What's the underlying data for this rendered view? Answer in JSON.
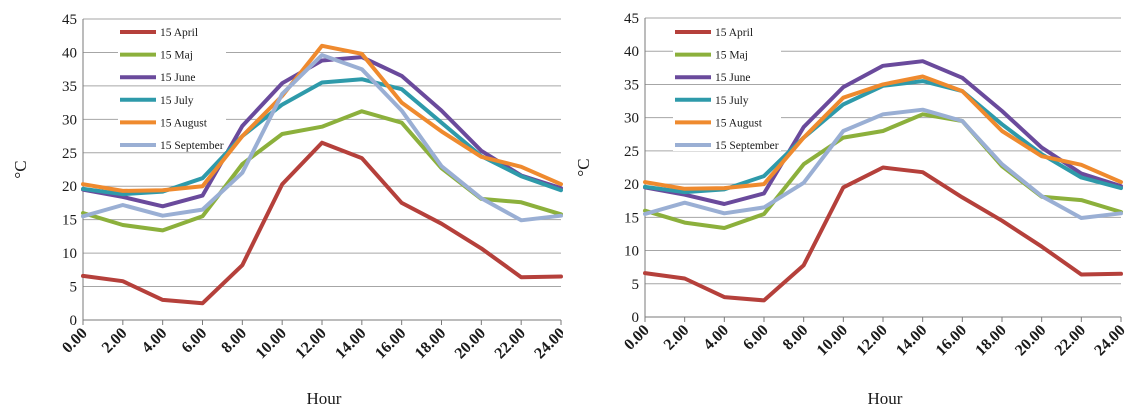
{
  "chart_data": [
    {
      "type": "line",
      "xlabel": "Hour",
      "ylabel": "°C",
      "ylim": [
        0,
        45
      ],
      "yticks": [
        "0",
        "5",
        "10",
        "15",
        "20",
        "25",
        "30",
        "35",
        "40",
        "45"
      ],
      "categories": [
        "0.00",
        "2.00",
        "4.00",
        "6.00",
        "8.00",
        "10.00",
        "12.00",
        "14.00",
        "16.00",
        "18.00",
        "20.00",
        "22.00",
        "24.00"
      ],
      "grid": "horizontal",
      "legend": "top-left",
      "series": [
        {
          "name": "15 April",
          "color": "#b5403b",
          "values": [
            6.6,
            5.8,
            3.0,
            2.5,
            8.2,
            20.3,
            26.5,
            24.2,
            17.5,
            14.4,
            10.7,
            6.4,
            6.5
          ]
        },
        {
          "name": "15 Maj",
          "color": "#8cb03c",
          "values": [
            16.0,
            14.2,
            13.4,
            15.5,
            23.3,
            27.8,
            28.9,
            31.2,
            29.5,
            22.7,
            18.1,
            17.6,
            15.8
          ]
        },
        {
          "name": "15 June",
          "color": "#6a4a9c",
          "values": [
            19.5,
            18.4,
            17.0,
            18.6,
            29.0,
            35.4,
            38.8,
            39.3,
            36.5,
            31.3,
            25.3,
            21.6,
            19.7
          ]
        },
        {
          "name": "15 July",
          "color": "#2e9aaa",
          "values": [
            19.6,
            18.8,
            19.2,
            21.2,
            27.5,
            32.2,
            35.5,
            36.0,
            34.5,
            29.5,
            24.5,
            21.5,
            19.4
          ]
        },
        {
          "name": "15 August",
          "color": "#ef8a2e",
          "values": [
            20.3,
            19.3,
            19.4,
            20.0,
            27.5,
            33.5,
            41.0,
            39.8,
            32.5,
            28.2,
            24.4,
            22.9,
            20.3
          ]
        },
        {
          "name": "15 September",
          "color": "#9aafd4",
          "values": [
            15.5,
            17.2,
            15.6,
            16.5,
            22.0,
            33.8,
            39.6,
            37.5,
            31.3,
            23.0,
            18.2,
            14.9,
            15.6
          ]
        }
      ]
    },
    {
      "type": "line",
      "xlabel": "Hour",
      "ylabel": "°C",
      "ylim": [
        0,
        45
      ],
      "yticks": [
        "0",
        "5",
        "10",
        "15",
        "20",
        "25",
        "30",
        "35",
        "40",
        "45"
      ],
      "categories": [
        "0.00",
        "2.00",
        "4.00",
        "6.00",
        "8.00",
        "10.00",
        "12.00",
        "14.00",
        "16.00",
        "18.00",
        "20.00",
        "22.00",
        "24.00"
      ],
      "grid": "horizontal",
      "legend": "top-left",
      "series": [
        {
          "name": "15 April",
          "color": "#b5403b",
          "values": [
            6.6,
            5.8,
            3.0,
            2.5,
            7.8,
            19.5,
            22.5,
            21.8,
            18.0,
            14.5,
            10.6,
            6.4,
            6.5
          ]
        },
        {
          "name": "15 Maj",
          "color": "#8cb03c",
          "values": [
            16.0,
            14.2,
            13.4,
            15.5,
            23.0,
            27.0,
            28.0,
            30.5,
            29.5,
            22.7,
            18.1,
            17.6,
            15.8
          ]
        },
        {
          "name": "15 June",
          "color": "#6a4a9c",
          "values": [
            19.5,
            18.4,
            17.0,
            18.6,
            28.6,
            34.6,
            37.8,
            38.5,
            36.0,
            31.0,
            25.5,
            21.6,
            19.7
          ]
        },
        {
          "name": "15 July",
          "color": "#2e9aaa",
          "values": [
            19.6,
            18.8,
            19.2,
            21.2,
            27.0,
            32.0,
            34.8,
            35.5,
            34.0,
            29.0,
            24.5,
            21.0,
            19.4
          ]
        },
        {
          "name": "15 August",
          "color": "#ef8a2e",
          "values": [
            20.3,
            19.3,
            19.4,
            20.0,
            27.0,
            33.0,
            35.0,
            36.2,
            34.0,
            28.0,
            24.2,
            22.9,
            20.3
          ]
        },
        {
          "name": "15 September",
          "color": "#9aafd4",
          "values": [
            15.5,
            17.2,
            15.6,
            16.5,
            20.2,
            28.0,
            30.5,
            31.2,
            29.5,
            23.0,
            18.2,
            14.9,
            15.6
          ]
        }
      ]
    }
  ]
}
